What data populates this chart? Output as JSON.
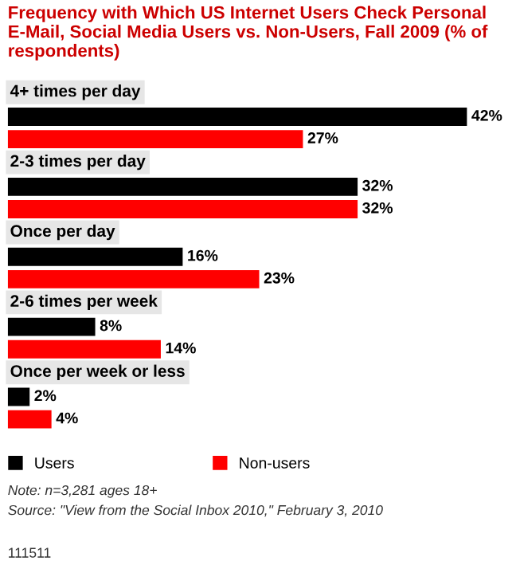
{
  "chart_data": {
    "type": "bar",
    "orientation": "horizontal",
    "title": "Frequency with Which US Internet Users Check Personal E-Mail, Social Media Users vs. Non-Users, Fall 2009 (% of respondents)",
    "categories": [
      "4+ times per day",
      "2-3 times per day",
      "Once per day",
      "2-6 times per week",
      "Once per week or less"
    ],
    "series": [
      {
        "name": "Users",
        "color": "#000000",
        "values": [
          42,
          32,
          16,
          8,
          2
        ],
        "value_labels": [
          "42%",
          "32%",
          "16%",
          "8%",
          "2%"
        ]
      },
      {
        "name": "Non-users",
        "color": "#ff0000",
        "values": [
          27,
          32,
          23,
          14,
          4
        ],
        "value_labels": [
          "27%",
          "32%",
          "23%",
          "14%",
          "4%"
        ]
      }
    ],
    "legend": "bottom",
    "annotations": [
      "Note: n=3,281 ages 18+",
      "Source: \"View from the Social Inbox 2010,\" February 3, 2010",
      "111511"
    ]
  }
}
